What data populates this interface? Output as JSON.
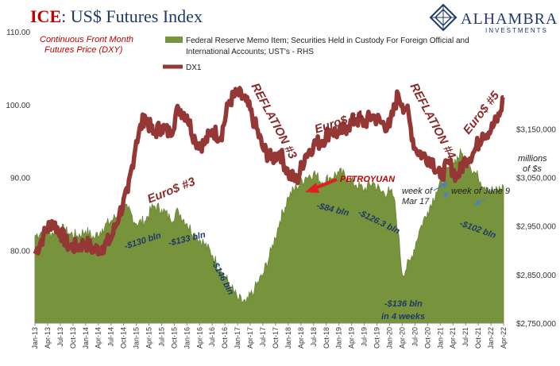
{
  "title": {
    "prefix": "ICE",
    "rest": ": US$ Futures Index"
  },
  "logo": {
    "name": "ALHAMBRA",
    "sub": "INVESTMENTS"
  },
  "left_note": [
    "Continuous  Front Month",
    "Futures Price (DXY)"
  ],
  "right_axis_label": [
    "millions",
    "of $s"
  ],
  "colors": {
    "area": "#77933c",
    "line": "#953735",
    "ann_blue": "#1f3a68",
    "ann_red": "#c00000",
    "arrow": "#e02020"
  },
  "chart_data": {
    "type": "line",
    "series": [
      {
        "name": "Federal Reserve Memo Item; Securities Held in Custody For Foreign Official and International Accounts; UST's - RHS",
        "axis": "right",
        "render": "area",
        "x": [
          "2013-01",
          "2013-03",
          "2013-05",
          "2013-07",
          "2013-09",
          "2013-11",
          "2014-01",
          "2014-03",
          "2014-05",
          "2014-07",
          "2014-09",
          "2014-11",
          "2015-01",
          "2015-03",
          "2015-05",
          "2015-07",
          "2015-09",
          "2015-11",
          "2016-01",
          "2016-03",
          "2016-05",
          "2016-07",
          "2016-09",
          "2016-11",
          "2017-01",
          "2017-03",
          "2017-05",
          "2017-07",
          "2017-09",
          "2017-11",
          "2018-01",
          "2018-03",
          "2018-05",
          "2018-07",
          "2018-09",
          "2018-11",
          "2019-01",
          "2019-03",
          "2019-05",
          "2019-07",
          "2019-09",
          "2019-11",
          "2020-01",
          "2020-02",
          "2020-03",
          "2020-04",
          "2020-06",
          "2020-08",
          "2020-10",
          "2020-12",
          "2021-02",
          "2021-04",
          "2021-06",
          "2021-08",
          "2021-10",
          "2021-12",
          "2022-02",
          "2022-04"
        ],
        "values": [
          2930,
          2940,
          2935,
          2945,
          2935,
          2930,
          2940,
          2925,
          2945,
          2960,
          2975,
          2985,
          2955,
          2960,
          2990,
          2985,
          2965,
          2980,
          2955,
          2930,
          2915,
          2890,
          2860,
          2830,
          2800,
          2790,
          2820,
          2850,
          2900,
          2960,
          3010,
          3030,
          3050,
          3060,
          3040,
          3050,
          3060,
          3050,
          3035,
          3025,
          3040,
          3020,
          3020,
          3010,
          2940,
          2850,
          2880,
          2940,
          2980,
          3020,
          3050,
          3080,
          3100,
          3075,
          3050,
          3030,
          3020,
          3030
        ]
      },
      {
        "name": "DX1",
        "axis": "left",
        "render": "line",
        "x": [
          "2013-01",
          "2013-03",
          "2013-05",
          "2013-07",
          "2013-09",
          "2013-11",
          "2014-01",
          "2014-03",
          "2014-05",
          "2014-07",
          "2014-09",
          "2014-11",
          "2015-01",
          "2015-03",
          "2015-05",
          "2015-07",
          "2015-09",
          "2015-11",
          "2016-01",
          "2016-03",
          "2016-05",
          "2016-07",
          "2016-09",
          "2016-11",
          "2017-01",
          "2017-03",
          "2017-05",
          "2017-07",
          "2017-09",
          "2017-11",
          "2018-01",
          "2018-03",
          "2018-05",
          "2018-07",
          "2018-09",
          "2018-11",
          "2019-01",
          "2019-03",
          "2019-05",
          "2019-07",
          "2019-09",
          "2019-11",
          "2020-01",
          "2020-03",
          "2020-04",
          "2020-05",
          "2020-07",
          "2020-09",
          "2020-11",
          "2021-01",
          "2021-03",
          "2021-05",
          "2021-07",
          "2021-09",
          "2021-11",
          "2022-01",
          "2022-03",
          "2022-04"
        ],
        "values": [
          79.5,
          82.0,
          84.0,
          82.5,
          80.5,
          80.5,
          81.0,
          80.0,
          80.5,
          81.5,
          85.0,
          88.0,
          95.0,
          98.5,
          96.0,
          97.0,
          96.0,
          99.5,
          98.5,
          95.0,
          94.5,
          96.5,
          95.5,
          100.5,
          101.5,
          100.5,
          97.5,
          94.0,
          92.5,
          93.5,
          90.5,
          89.5,
          93.0,
          94.5,
          95.0,
          96.5,
          96.0,
          97.0,
          98.0,
          97.5,
          98.5,
          97.5,
          97.0,
          101.5,
          100.0,
          99.5,
          94.0,
          93.0,
          92.5,
          90.0,
          92.0,
          90.0,
          92.5,
          93.5,
          96.0,
          96.5,
          98.5,
          101.0
        ]
      }
    ],
    "y_left": {
      "range": [
        70,
        110
      ],
      "ticks": [
        "80.00",
        "90.00",
        "100.00",
        "110.00"
      ],
      "tick_values": [
        80,
        90,
        100,
        110
      ]
    },
    "y_right": {
      "range": [
        2750,
        3350
      ],
      "ticks": [
        "$2,750,000",
        "$2,850,000",
        "$2,950,000",
        "$3,050,000",
        "$3,150,000"
      ],
      "tick_values": [
        2750,
        2850,
        2950,
        3050,
        3150
      ]
    },
    "x_range": [
      "2013-01",
      "2022-04"
    ],
    "x_ticks": [
      "Jan-13",
      "Apr-13",
      "Jul-13",
      "Oct-13",
      "Jan-14",
      "Apr-14",
      "Jul-14",
      "Oct-14",
      "Jan-15",
      "Apr-15",
      "Jul-15",
      "Oct-15",
      "Jan-16",
      "Apr-16",
      "Jul-16",
      "Oct-16",
      "Jan-17",
      "Apr-17",
      "Jul-17",
      "Oct-17",
      "Jan-18",
      "Apr-18",
      "Jul-18",
      "Oct-18",
      "Jan-19",
      "Apr-19",
      "Jul-19",
      "Oct-19",
      "Jan-20",
      "Apr-20",
      "Jul-20",
      "Oct-20",
      "Jan-21",
      "Apr-21",
      "Jul-21",
      "Oct-21",
      "Jan-22",
      "Apr-22"
    ],
    "legend": {
      "placement": "top",
      "area_label": [
        "Federal Reserve Memo Item; Securities Held in Custody For Foreign Official and",
        "International Accounts; UST's - RHS"
      ],
      "line_label": "DX1"
    },
    "annotations": {
      "blue": [
        "-$130 bln",
        "-$133 bln",
        "-$146 bln",
        "-$84 bln",
        "-$126.3 bln",
        "-$136 bln",
        "in 4 weeks",
        "-$102 bln"
      ],
      "themes": [
        "Euro$ #3",
        "REFLATION #3",
        "Euro$ #4",
        "REFLATION #4",
        "Euro$ #5"
      ],
      "petroyuan": "PETROYUAN",
      "weeks": [
        "week of",
        "Mar 17",
        "week of June 9"
      ]
    }
  }
}
